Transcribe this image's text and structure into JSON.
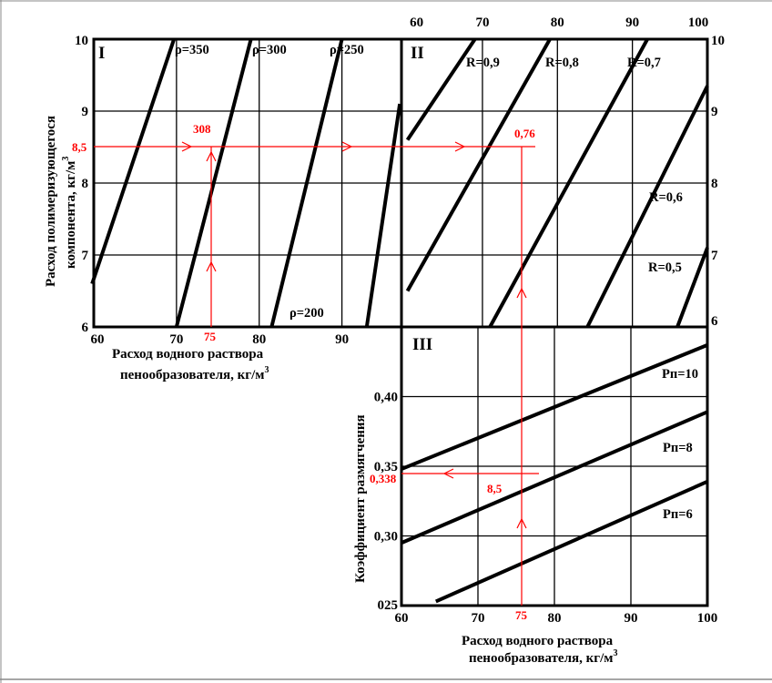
{
  "chart_data": [
    {
      "panel": "I",
      "type": "line",
      "x_axis": {
        "label_line1": "Расход водного раствора",
        "label_line2": "пенообразователя, кг/м",
        "label_sup": "3",
        "range": [
          60,
          97
        ],
        "ticks": [
          60,
          70,
          80,
          90
        ]
      },
      "y_axis": {
        "label_line1": "Расход полимеризующегося",
        "label_line2": "компонента, кг/м",
        "label_sup": "3",
        "range": [
          6,
          10
        ],
        "ticks": [
          6,
          7,
          8,
          9,
          10
        ]
      },
      "grid": true,
      "series": [
        {
          "name": "ρ=350",
          "points": [
            [
              59.8,
              6.6
            ],
            [
              69.7,
              10.0
            ]
          ]
        },
        {
          "name": "ρ=300",
          "points": [
            [
              70.0,
              6.0
            ],
            [
              79.0,
              10.0
            ]
          ]
        },
        {
          "name": "ρ=250",
          "points": [
            [
              81.5,
              6.0
            ],
            [
              90.0,
              10.0
            ]
          ]
        },
        {
          "name": "ρ=200",
          "points": [
            [
              93.0,
              6.0
            ],
            [
              97.0,
              9.1
            ]
          ]
        }
      ]
    },
    {
      "panel": "II",
      "type": "line",
      "x_axis": {
        "range": [
          60,
          100
        ],
        "ticks": [
          60,
          70,
          80,
          90,
          100
        ]
      },
      "y_axis": {
        "range": [
          6,
          10
        ],
        "ticks": [
          6,
          7,
          8,
          9,
          10
        ]
      },
      "grid": true,
      "series": [
        {
          "name": "R=0,9",
          "points": [
            [
              60.0,
              8.6
            ],
            [
              69.0,
              10.0
            ]
          ]
        },
        {
          "name": "R=0,8",
          "points": [
            [
              60.0,
              6.5
            ],
            [
              79.0,
              10.0
            ]
          ]
        },
        {
          "name": "R=0,7",
          "points": [
            [
              71.0,
              6.0
            ],
            [
              92.0,
              10.0
            ]
          ]
        },
        {
          "name": "R=0,6",
          "points": [
            [
              84.0,
              6.0
            ],
            [
              100.0,
              9.35
            ]
          ]
        },
        {
          "name": "R=0,5",
          "points": [
            [
              96.0,
              6.0
            ],
            [
              100.0,
              7.1
            ]
          ]
        }
      ]
    },
    {
      "panel": "III",
      "type": "line",
      "x_axis": {
        "label_line1": "Расход водного раствора",
        "label_line2": "пенообразователя, кг/м",
        "label_sup": "3",
        "range": [
          60,
          100
        ],
        "ticks": [
          60,
          70,
          80,
          90,
          100
        ]
      },
      "y_axis": {
        "label": "Коэффициент размягчения",
        "range": [
          0.25,
          0.45
        ],
        "ticks": [
          0.25,
          0.3,
          0.35,
          0.4
        ]
      },
      "grid": true,
      "series": [
        {
          "name": "Рп=10",
          "points": [
            [
              60.0,
              0.348
            ],
            [
              100.0,
              0.437
            ]
          ]
        },
        {
          "name": "Рп=8",
          "points": [
            [
              60.0,
              0.295
            ],
            [
              100.0,
              0.389
            ]
          ]
        },
        {
          "name": "Рп=6",
          "points": [
            [
              64.5,
              0.253
            ],
            [
              100.0,
              0.339
            ]
          ]
        }
      ]
    }
  ],
  "panel_labels": {
    "p1": "I",
    "p2": "II",
    "p3": "III"
  },
  "tick_labels": {
    "p1_x": [
      "60",
      "70",
      "80",
      "90"
    ],
    "p1_y": [
      "6",
      "7",
      "8",
      "9",
      "10"
    ],
    "p2_x_top": [
      "60",
      "70",
      "80",
      "90",
      "100"
    ],
    "p2_y_right": [
      "6",
      "7",
      "8",
      "9",
      "10"
    ],
    "p3_x": [
      "60",
      "70",
      "80",
      "90",
      "100"
    ],
    "p3_y": [
      "025",
      "0,30",
      "0,35",
      "0,40"
    ]
  },
  "example": {
    "color": "#ff0000",
    "labels": {
      "y_value": "8,5",
      "density": "308",
      "x_value": "75",
      "softening": "0,76",
      "x_value_bottom": "75",
      "p3_value": "8,5",
      "result": "0,338"
    }
  },
  "colors": {
    "lines": "#000000",
    "grid": "#000000",
    "highlight": "#ff0000"
  }
}
